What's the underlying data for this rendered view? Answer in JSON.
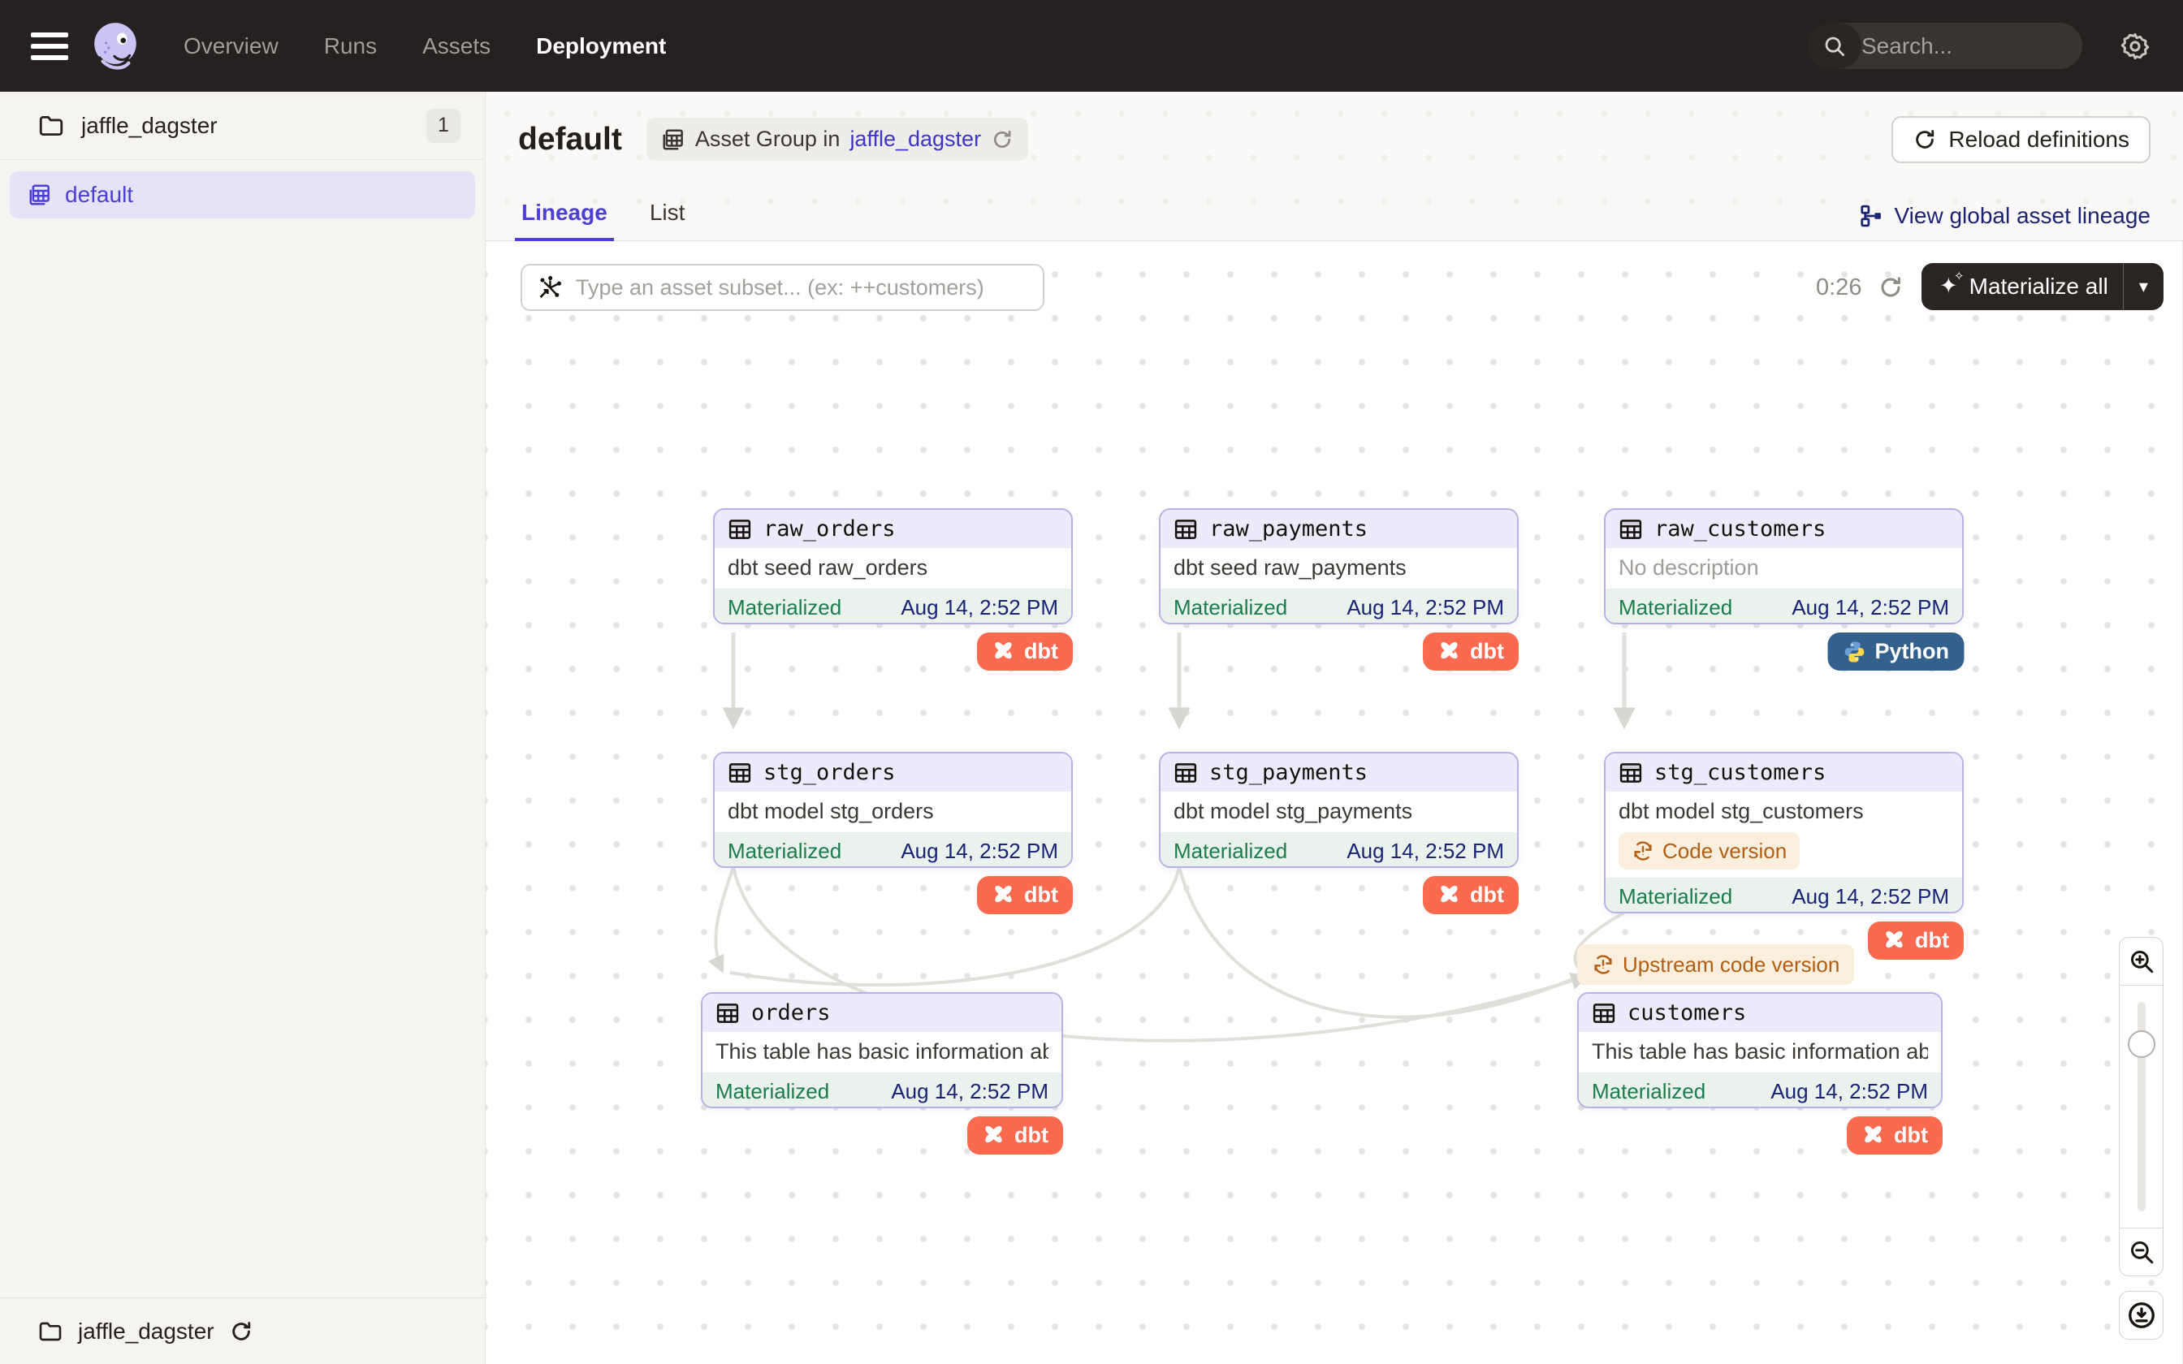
{
  "topnav": {
    "nav_items": [
      {
        "label": "Overview",
        "active": false
      },
      {
        "label": "Runs",
        "active": false
      },
      {
        "label": "Assets",
        "active": false
      },
      {
        "label": "Deployment",
        "active": true
      }
    ],
    "search_placeholder": "Search...",
    "search_shortcut": "/"
  },
  "sidebar": {
    "project_name": "jaffle_dagster",
    "project_count": "1",
    "selected_group": "default",
    "footer_project": "jaffle_dagster"
  },
  "header": {
    "title": "default",
    "tag_prefix": "Asset Group in",
    "tag_link": "jaffle_dagster",
    "reload_button": "Reload definitions",
    "tabs": [
      {
        "label": "Lineage",
        "active": true
      },
      {
        "label": "List",
        "active": false
      }
    ],
    "global_lineage": "View global asset lineage"
  },
  "toolbar": {
    "filter_placeholder": "Type an asset subset... (ex: ++customers)",
    "timer": "0:26",
    "materialize": "Materialize all"
  },
  "graph": {
    "badges": {
      "dbt": "dbt",
      "python": "Python"
    },
    "floating_tag": "Upstream code version",
    "nodes": [
      {
        "id": "raw_orders",
        "name": "raw_orders",
        "description": "dbt seed raw_orders",
        "muted": false,
        "status": "Materialized",
        "timestamp": "Aug 14, 2:52 PM",
        "badge": "dbt",
        "tag": null
      },
      {
        "id": "raw_payments",
        "name": "raw_payments",
        "description": "dbt seed raw_payments",
        "muted": false,
        "status": "Materialized",
        "timestamp": "Aug 14, 2:52 PM",
        "badge": "dbt",
        "tag": null
      },
      {
        "id": "raw_customers",
        "name": "raw_customers",
        "description": "No description",
        "muted": true,
        "status": "Materialized",
        "timestamp": "Aug 14, 2:52 PM",
        "badge": "python",
        "tag": null
      },
      {
        "id": "stg_orders",
        "name": "stg_orders",
        "description": "dbt model stg_orders",
        "muted": false,
        "status": "Materialized",
        "timestamp": "Aug 14, 2:52 PM",
        "badge": "dbt",
        "tag": null
      },
      {
        "id": "stg_payments",
        "name": "stg_payments",
        "description": "dbt model stg_payments",
        "muted": false,
        "status": "Materialized",
        "timestamp": "Aug 14, 2:52 PM",
        "badge": "dbt",
        "tag": null
      },
      {
        "id": "stg_customers",
        "name": "stg_customers",
        "description": "dbt model stg_customers",
        "muted": false,
        "status": "Materialized",
        "timestamp": "Aug 14, 2:52 PM",
        "badge": "dbt",
        "tag": "Code version"
      },
      {
        "id": "orders",
        "name": "orders",
        "description": "This table has basic information about ...",
        "muted": false,
        "status": "Materialized",
        "timestamp": "Aug 14, 2:52 PM",
        "badge": "dbt",
        "tag": null
      },
      {
        "id": "customers",
        "name": "customers",
        "description": "This table has basic information about ...",
        "muted": false,
        "status": "Materialized",
        "timestamp": "Aug 14, 2:52 PM",
        "badge": "dbt",
        "tag": null
      }
    ]
  },
  "colors": {
    "accent_indigo": "#4a40d4",
    "dbt_orange": "#fb6a4e",
    "python_blue": "#33608c",
    "materialized_green": "#1d7c4b",
    "timestamp_navy": "#1b2376",
    "code_version_orange": "#b25e14"
  }
}
